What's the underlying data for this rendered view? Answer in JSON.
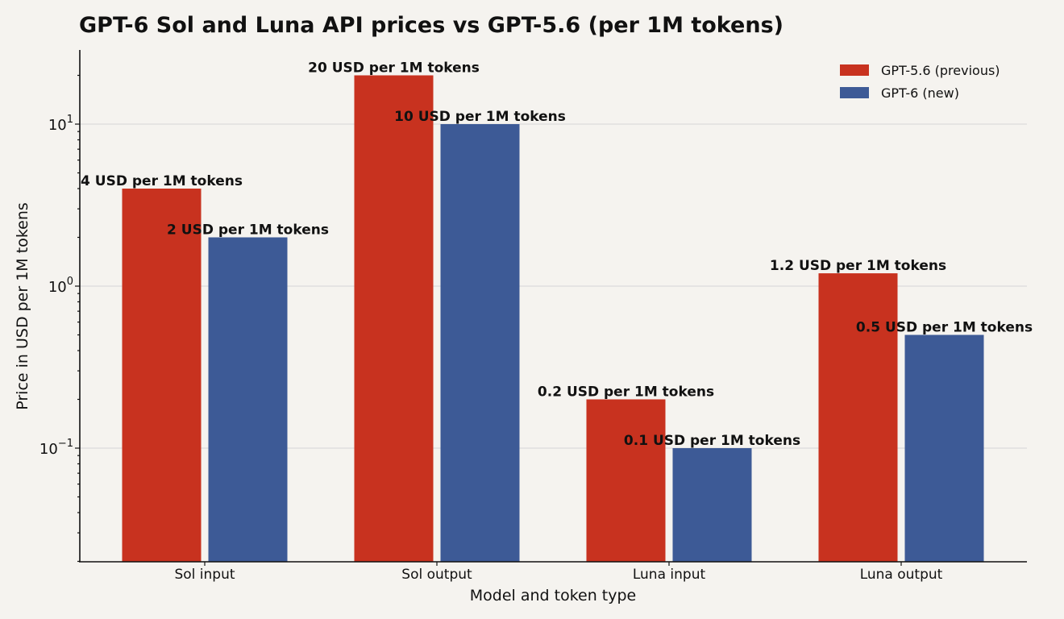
{
  "chart_data": {
    "type": "bar",
    "title": "GPT-6 Sol and Luna API prices vs GPT-5.6 (per 1M tokens)",
    "xlabel": "Model and token type",
    "ylabel": "Price in USD per 1M tokens",
    "yscale": "log",
    "ylim": [
      0.02,
      30
    ],
    "categories": [
      "Sol input",
      "Sol output",
      "Luna input",
      "Luna output"
    ],
    "series": [
      {
        "name": "GPT-5.6 (previous)",
        "color": "#c8321f",
        "values": [
          4,
          20,
          0.2,
          1.2
        ],
        "labels": [
          "4 USD per 1M tokens",
          "20 USD per 1M tokens",
          "0.2 USD per 1M tokens",
          "1.2 USD per 1M tokens"
        ]
      },
      {
        "name": "GPT-6 (new)",
        "color": "#3d5a96",
        "values": [
          2,
          10,
          0.1,
          0.5
        ],
        "labels": [
          "2 USD per 1M tokens",
          "10 USD per 1M tokens",
          "0.1 USD per 1M tokens",
          "0.5 USD per 1M tokens"
        ]
      }
    ],
    "y_ticks": [
      {
        "base": "10",
        "exp": "1",
        "value": 10
      },
      {
        "base": "10",
        "exp": "0",
        "value": 1
      },
      {
        "base": "10",
        "exp": "−1",
        "value": 0.1
      }
    ],
    "grid": "horizontal",
    "legend": "top-right"
  }
}
